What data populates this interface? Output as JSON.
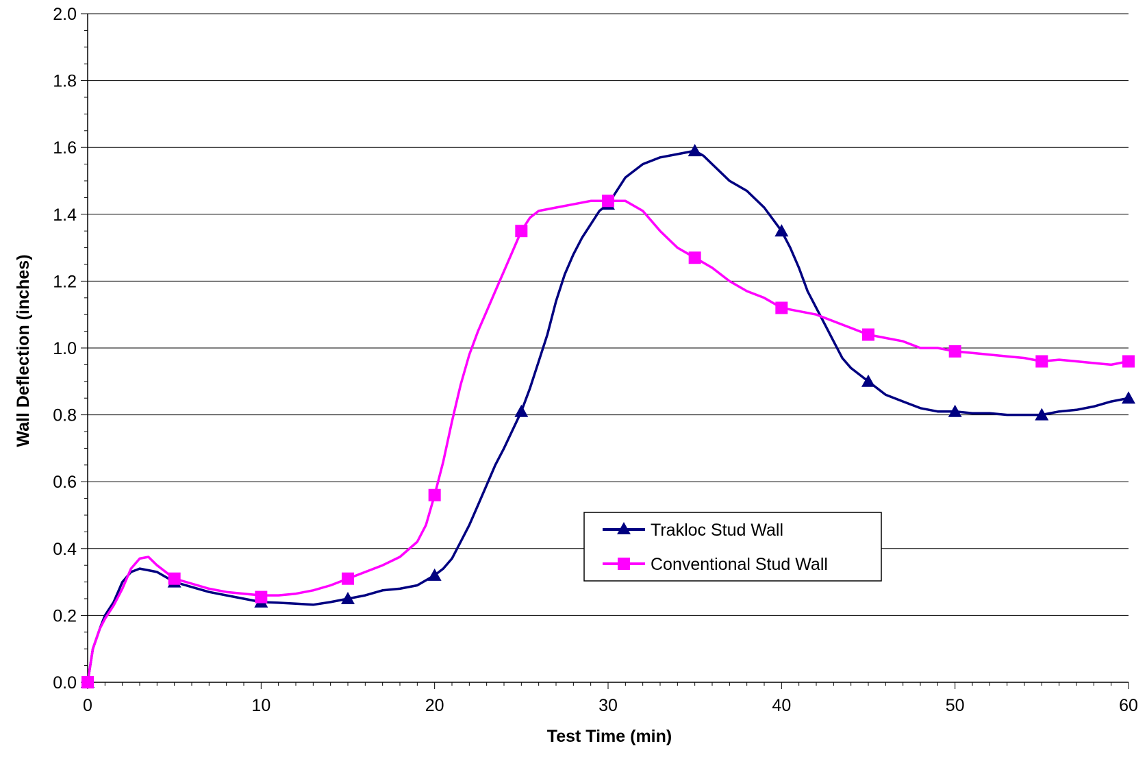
{
  "chart_data": {
    "type": "line",
    "title": "",
    "xlabel": "Test Time (min)",
    "ylabel": "Wall Deflection (inches)",
    "xlim": [
      0,
      60
    ],
    "ylim": [
      0,
      2.0
    ],
    "x_ticks": [
      0,
      10,
      20,
      30,
      40,
      50,
      60
    ],
    "x_tick_labels": [
      "0",
      "10",
      "20",
      "30",
      "40",
      "50",
      "60"
    ],
    "x_minor_step": 1,
    "y_ticks": [
      0,
      0.2,
      0.4,
      0.6,
      0.8,
      1.0,
      1.2,
      1.4,
      1.6,
      1.8,
      2.0
    ],
    "y_tick_labels": [
      "0.0",
      "0.2",
      "0.4",
      "0.6",
      "0.8",
      "1.0",
      "1.2",
      "1.4",
      "1.6",
      "1.8",
      "2.0"
    ],
    "grid": "horizontal major gridlines",
    "legend_position": "center-right inside plot",
    "series": [
      {
        "name": "Trakloc Stud Wall",
        "color": "#000080",
        "marker": "triangle",
        "markers_x": [
          0,
          5,
          10,
          15,
          20,
          25,
          30,
          35,
          40,
          45,
          50,
          55,
          60
        ],
        "markers_y": [
          0.0,
          0.3,
          0.24,
          0.25,
          0.32,
          0.81,
          1.43,
          1.59,
          1.35,
          0.9,
          0.81,
          0.8,
          0.85
        ],
        "x": [
          0,
          0.3,
          0.7,
          1,
          1.5,
          2,
          2.5,
          3,
          3.5,
          4,
          5,
          6,
          7,
          8,
          9,
          10,
          11,
          12,
          13,
          14,
          15,
          16,
          17,
          18,
          19,
          20,
          20.5,
          21,
          21.5,
          22,
          22.5,
          23,
          23.5,
          24,
          25,
          25.5,
          26,
          26.5,
          27,
          27.5,
          28,
          28.5,
          29,
          29.5,
          30,
          30.5,
          31,
          32,
          33,
          34,
          35,
          35.5,
          36,
          37,
          38,
          39,
          40,
          40.5,
          41,
          41.5,
          42,
          42.5,
          43,
          43.5,
          44,
          45,
          46,
          47,
          48,
          49,
          50,
          51,
          52,
          53,
          54,
          55,
          56,
          57,
          58,
          59,
          60
        ],
        "y": [
          0.0,
          0.1,
          0.16,
          0.2,
          0.24,
          0.3,
          0.33,
          0.34,
          0.335,
          0.33,
          0.3,
          0.285,
          0.27,
          0.26,
          0.25,
          0.24,
          0.238,
          0.235,
          0.232,
          0.24,
          0.25,
          0.26,
          0.275,
          0.28,
          0.29,
          0.32,
          0.34,
          0.37,
          0.42,
          0.47,
          0.53,
          0.59,
          0.65,
          0.7,
          0.81,
          0.88,
          0.96,
          1.04,
          1.14,
          1.22,
          1.28,
          1.33,
          1.37,
          1.41,
          1.43,
          1.47,
          1.51,
          1.55,
          1.57,
          1.58,
          1.59,
          1.575,
          1.55,
          1.5,
          1.47,
          1.42,
          1.35,
          1.3,
          1.24,
          1.17,
          1.12,
          1.07,
          1.02,
          0.97,
          0.94,
          0.9,
          0.86,
          0.84,
          0.82,
          0.81,
          0.81,
          0.805,
          0.805,
          0.8,
          0.8,
          0.8,
          0.81,
          0.815,
          0.825,
          0.84,
          0.85
        ]
      },
      {
        "name": "Conventional Stud Wall",
        "color": "#ff00ff",
        "marker": "square",
        "markers_x": [
          0,
          5,
          10,
          15,
          20,
          25,
          30,
          35,
          40,
          45,
          50,
          55,
          60
        ],
        "markers_y": [
          0.0,
          0.31,
          0.255,
          0.31,
          0.56,
          1.35,
          1.44,
          1.27,
          1.12,
          1.04,
          0.99,
          0.96,
          0.96
        ],
        "x": [
          0,
          0.3,
          0.7,
          1,
          1.5,
          2,
          2.5,
          3,
          3.5,
          4,
          5,
          6,
          7,
          8,
          9,
          10,
          11,
          12,
          13,
          14,
          15,
          16,
          17,
          18,
          19,
          19.5,
          20,
          20.5,
          21,
          21.5,
          22,
          22.5,
          23,
          23.5,
          24,
          24.5,
          25,
          25.5,
          26,
          27,
          28,
          29,
          30,
          31,
          32,
          33,
          34,
          35,
          36,
          37,
          38,
          39,
          40,
          41,
          42,
          43,
          44,
          45,
          46,
          47,
          48,
          49,
          50,
          51,
          52,
          53,
          54,
          55,
          56,
          57,
          58,
          59,
          60
        ],
        "y": [
          0.0,
          0.1,
          0.16,
          0.19,
          0.23,
          0.28,
          0.34,
          0.37,
          0.375,
          0.35,
          0.31,
          0.295,
          0.28,
          0.27,
          0.265,
          0.26,
          0.26,
          0.265,
          0.275,
          0.29,
          0.31,
          0.33,
          0.35,
          0.375,
          0.42,
          0.47,
          0.56,
          0.66,
          0.78,
          0.89,
          0.98,
          1.05,
          1.11,
          1.17,
          1.23,
          1.29,
          1.35,
          1.39,
          1.41,
          1.42,
          1.43,
          1.44,
          1.44,
          1.44,
          1.41,
          1.35,
          1.3,
          1.27,
          1.24,
          1.2,
          1.17,
          1.15,
          1.12,
          1.11,
          1.1,
          1.08,
          1.06,
          1.04,
          1.03,
          1.02,
          1.0,
          1.0,
          0.99,
          0.985,
          0.98,
          0.975,
          0.97,
          0.96,
          0.965,
          0.96,
          0.955,
          0.95,
          0.96
        ]
      }
    ]
  }
}
